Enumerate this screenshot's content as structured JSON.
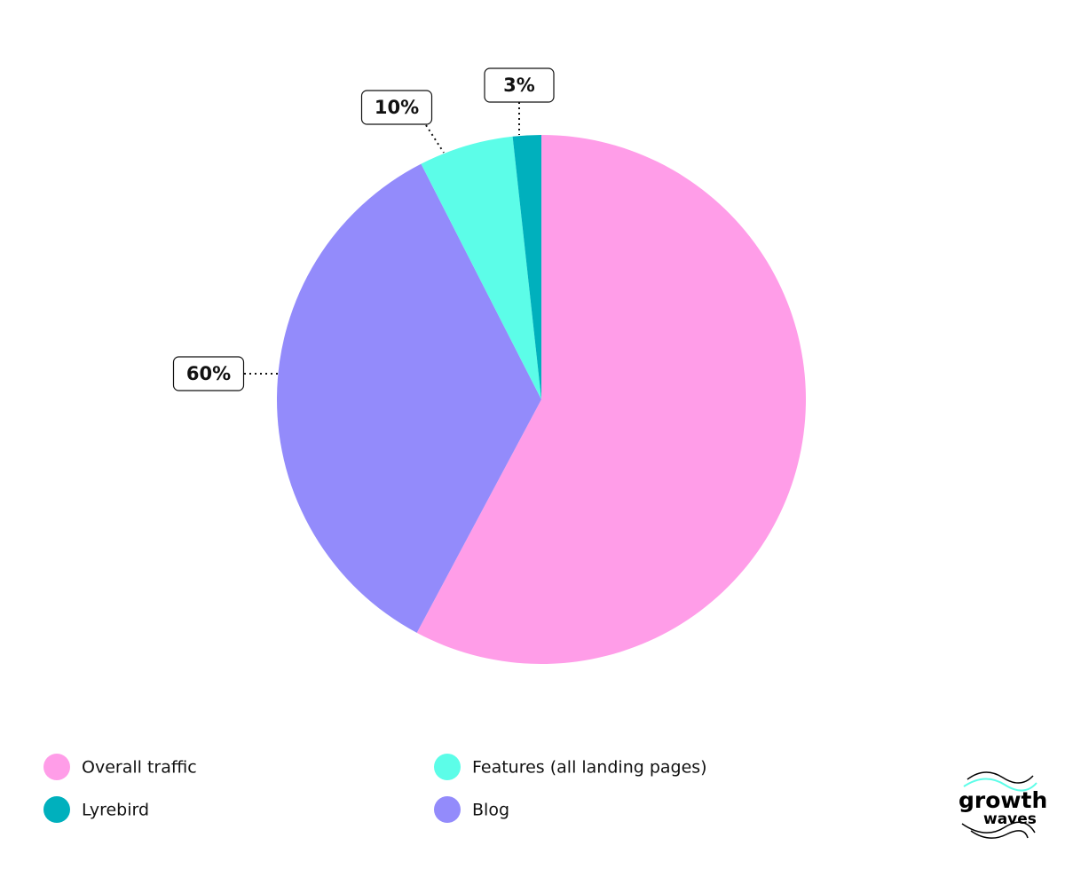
{
  "chart_data": {
    "type": "pie",
    "categories": [
      "Overall traffic",
      "Blog",
      "Features (all landing pages)",
      "Lyrebird"
    ],
    "values": [
      100,
      60,
      10,
      3
    ],
    "value_labels": [
      null,
      "60%",
      "10%",
      "3%"
    ],
    "colors": [
      "#ff9de8",
      "#938bfb",
      "#5cfde8",
      "#00b0bd"
    ],
    "legend": "bottom"
  },
  "logo": {
    "line1": "growth",
    "line2": "waves"
  }
}
